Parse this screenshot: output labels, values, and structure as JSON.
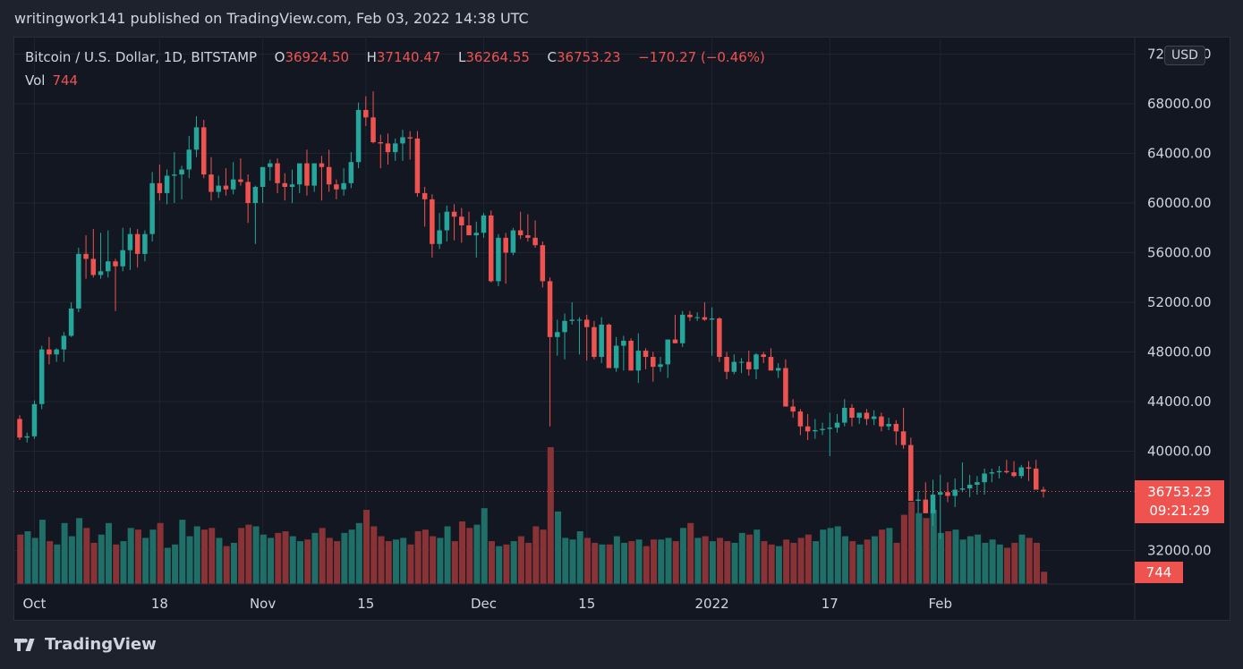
{
  "header": {
    "publish_line": "writingwork141 published on TradingView.com, Feb 03, 2022 14:38 UTC"
  },
  "legend": {
    "symbol": "Bitcoin / U.S. Dollar, 1D, BITSTAMP",
    "open_label": "O",
    "open": "36924.50",
    "high_label": "H",
    "high": "37140.47",
    "low_label": "L",
    "low": "36264.55",
    "close_label": "C",
    "close": "36753.23",
    "change": "−170.27 (−0.46%)",
    "vol_label": "Vol",
    "vol_value": "744"
  },
  "currency": "USD",
  "price_tag": {
    "price": "36753.23",
    "countdown": "09:21:29"
  },
  "vol_tag": "744",
  "footer": {
    "brand": "TradingView"
  },
  "colors": {
    "up": "#26a69a",
    "down": "#ef5350",
    "vol_up": "#1f6e67",
    "vol_down": "#8a3337",
    "background": "#131722",
    "grid": "#1f2430",
    "text": "#d1d4dc"
  },
  "chart_data": {
    "type": "candlestick",
    "title": "Bitcoin / U.S. Dollar, 1D, BITSTAMP",
    "y_ticks": [
      "72000.00",
      "68000.00",
      "64000.00",
      "60000.00",
      "56000.00",
      "52000.00",
      "48000.00",
      "44000.00",
      "40000.00",
      "32000.00"
    ],
    "y_tick_values": [
      72000,
      68000,
      64000,
      60000,
      56000,
      52000,
      48000,
      44000,
      40000,
      32000
    ],
    "x_ticks": [
      {
        "label": "Oct",
        "index": 2
      },
      {
        "label": "18",
        "index": 19
      },
      {
        "label": "Nov",
        "index": 33
      },
      {
        "label": "15",
        "index": 47
      },
      {
        "label": "Dec",
        "index": 63
      },
      {
        "label": "15",
        "index": 77
      },
      {
        "label": "2022",
        "index": 94
      },
      {
        "label": "17",
        "index": 110
      },
      {
        "label": "Feb",
        "index": 125
      }
    ],
    "ylim": [
      31000,
      74000
    ],
    "current_price": 36753.23,
    "candles_ohlc": [
      [
        42600,
        42900,
        40900,
        41100
      ],
      [
        41100,
        41500,
        40700,
        41200
      ],
      [
        41200,
        44100,
        41000,
        43800
      ],
      [
        43800,
        48500,
        43400,
        48200
      ],
      [
        48200,
        49200,
        47000,
        47800
      ],
      [
        47800,
        48300,
        47200,
        48200
      ],
      [
        48200,
        49600,
        47200,
        49300
      ],
      [
        49300,
        52000,
        49200,
        51500
      ],
      [
        51500,
        56400,
        51200,
        55900
      ],
      [
        55900,
        57400,
        53900,
        55500
      ],
      [
        55500,
        57900,
        54000,
        54200
      ],
      [
        54200,
        57600,
        53900,
        54500
      ],
      [
        54500,
        57800,
        54000,
        55300
      ],
      [
        55300,
        55500,
        51300,
        54900
      ],
      [
        54900,
        58000,
        54500,
        56200
      ],
      [
        56200,
        58000,
        54600,
        57500
      ],
      [
        57500,
        57900,
        54800,
        55900
      ],
      [
        55900,
        57800,
        55300,
        57500
      ],
      [
        57500,
        62500,
        56900,
        61600
      ],
      [
        61600,
        63100,
        60200,
        60800
      ],
      [
        60800,
        62700,
        59900,
        62200
      ],
      [
        62200,
        64100,
        60000,
        62300
      ],
      [
        62300,
        63000,
        60300,
        62700
      ],
      [
        62700,
        65400,
        62000,
        64300
      ],
      [
        64300,
        67000,
        63700,
        66100
      ],
      [
        66100,
        66700,
        62000,
        62300
      ],
      [
        62300,
        63700,
        60200,
        60900
      ],
      [
        60900,
        62200,
        60400,
        61400
      ],
      [
        61400,
        62800,
        60600,
        61100
      ],
      [
        61100,
        63300,
        60700,
        61900
      ],
      [
        61900,
        63600,
        61400,
        61700
      ],
      [
        61700,
        62300,
        58400,
        60000
      ],
      [
        60000,
        61400,
        56700,
        61300
      ],
      [
        61300,
        62300,
        60000,
        62900
      ],
      [
        62900,
        63500,
        61800,
        63200
      ],
      [
        63200,
        63600,
        60800,
        61600
      ],
      [
        61600,
        62400,
        60200,
        61300
      ],
      [
        61300,
        62700,
        60000,
        61500
      ],
      [
        61500,
        63000,
        60800,
        63200
      ],
      [
        63200,
        64300,
        60600,
        61400
      ],
      [
        61400,
        62900,
        60900,
        63200
      ],
      [
        63200,
        63800,
        60200,
        62900
      ],
      [
        62900,
        64300,
        60900,
        61500
      ],
      [
        61500,
        61900,
        60300,
        61100
      ],
      [
        61100,
        62800,
        60600,
        61600
      ],
      [
        61600,
        64100,
        61200,
        63300
      ],
      [
        63300,
        68100,
        62800,
        67500
      ],
      [
        67500,
        68600,
        66200,
        66900
      ],
      [
        66900,
        69000,
        64800,
        64900
      ],
      [
        64900,
        65500,
        62800,
        64800
      ],
      [
        64800,
        65600,
        63100,
        64100
      ],
      [
        64100,
        65200,
        63400,
        64800
      ],
      [
        64800,
        65900,
        63400,
        65300
      ],
      [
        65300,
        65800,
        63500,
        65200
      ],
      [
        65200,
        65800,
        60500,
        60800
      ],
      [
        60800,
        61300,
        58100,
        60300
      ],
      [
        60300,
        60700,
        55600,
        56700
      ],
      [
        56700,
        59200,
        56300,
        57800
      ],
      [
        57800,
        59800,
        56900,
        59300
      ],
      [
        59300,
        59900,
        57000,
        58900
      ],
      [
        58900,
        59600,
        56800,
        58200
      ],
      [
        58200,
        59300,
        57900,
        57400
      ],
      [
        57400,
        58500,
        55600,
        57600
      ],
      [
        57600,
        59200,
        57200,
        59000
      ],
      [
        59000,
        59400,
        53600,
        53700
      ],
      [
        53700,
        57500,
        53300,
        57200
      ],
      [
        57200,
        57600,
        53500,
        56000
      ],
      [
        56000,
        58000,
        55800,
        57800
      ],
      [
        57800,
        59300,
        57100,
        57400
      ],
      [
        57400,
        59100,
        56900,
        57200
      ],
      [
        57200,
        58600,
        56400,
        56600
      ],
      [
        56600,
        56900,
        53200,
        53700
      ],
      [
        53700,
        54000,
        42000,
        49200
      ],
      [
        49200,
        50600,
        47700,
        49600
      ],
      [
        49600,
        51100,
        47400,
        50500
      ],
      [
        50500,
        52000,
        50200,
        50600
      ],
      [
        50600,
        50800,
        47800,
        50600
      ],
      [
        50600,
        51000,
        47300,
        50000
      ],
      [
        50000,
        50500,
        47400,
        47600
      ],
      [
        47600,
        50800,
        47100,
        50200
      ],
      [
        50200,
        50300,
        46900,
        46700
      ],
      [
        46700,
        49200,
        46400,
        48500
      ],
      [
        48500,
        49300,
        46500,
        48900
      ],
      [
        48900,
        49100,
        46600,
        46500
      ],
      [
        46500,
        49500,
        45500,
        48100
      ],
      [
        48100,
        48300,
        46600,
        47600
      ],
      [
        47600,
        48000,
        45600,
        46800
      ],
      [
        46800,
        47600,
        46400,
        47000
      ],
      [
        47000,
        48200,
        45900,
        49000
      ],
      [
        49000,
        51000,
        48700,
        48700
      ],
      [
        48700,
        51300,
        48400,
        51000
      ],
      [
        51000,
        51300,
        50500,
        50800
      ],
      [
        50800,
        51200,
        50500,
        50800
      ],
      [
        50800,
        52000,
        50500,
        50600
      ],
      [
        50600,
        51600,
        47700,
        50700
      ],
      [
        50700,
        50800,
        47200,
        47600
      ],
      [
        47600,
        48000,
        45800,
        46400
      ],
      [
        46400,
        47800,
        46200,
        47200
      ],
      [
        47200,
        47500,
        46300,
        47200
      ],
      [
        47200,
        48100,
        46100,
        46600
      ],
      [
        46600,
        47900,
        45800,
        47800
      ],
      [
        47800,
        48000,
        47100,
        47600
      ],
      [
        47600,
        48300,
        46700,
        46500
      ],
      [
        46500,
        47100,
        45900,
        46700
      ],
      [
        46700,
        47400,
        45600,
        43600
      ],
      [
        43600,
        44200,
        42700,
        43200
      ],
      [
        43200,
        43400,
        41300,
        42000
      ],
      [
        42000,
        43000,
        40900,
        41600
      ],
      [
        41600,
        42600,
        41000,
        41700
      ],
      [
        41700,
        42300,
        41300,
        41800
      ],
      [
        41800,
        43100,
        39600,
        41900
      ],
      [
        41900,
        43000,
        41500,
        42300
      ],
      [
        42300,
        44200,
        42000,
        43500
      ],
      [
        43500,
        43800,
        42000,
        42700
      ],
      [
        42700,
        43000,
        42200,
        43100
      ],
      [
        43100,
        43400,
        42100,
        42600
      ],
      [
        42600,
        43300,
        42100,
        42800
      ],
      [
        42800,
        43100,
        41600,
        42000
      ],
      [
        42000,
        42700,
        41700,
        42200
      ],
      [
        42200,
        42500,
        40500,
        41600
      ],
      [
        41600,
        43500,
        40200,
        40500
      ],
      [
        40500,
        41100,
        38300,
        36000
      ],
      [
        36000,
        36800,
        35000,
        36100
      ],
      [
        36100,
        37500,
        35400,
        35000
      ],
      [
        35000,
        37700,
        34000,
        36500
      ],
      [
        36500,
        38100,
        32900,
        36700
      ],
      [
        36700,
        37500,
        35900,
        36400
      ],
      [
        36400,
        37800,
        35500,
        36900
      ],
      [
        36900,
        39100,
        36700,
        37000
      ],
      [
        37000,
        38100,
        36300,
        37300
      ],
      [
        37300,
        38000,
        36500,
        37500
      ],
      [
        37500,
        38600,
        36500,
        38200
      ],
      [
        38200,
        38600,
        37500,
        38300
      ],
      [
        38300,
        38800,
        37800,
        38400
      ],
      [
        38400,
        39300,
        38200,
        38300
      ],
      [
        38300,
        39200,
        37900,
        38000
      ],
      [
        38000,
        38900,
        37800,
        38700
      ],
      [
        38700,
        39200,
        37600,
        38600
      ],
      [
        38600,
        39300,
        38300,
        36900
      ],
      [
        36900,
        37140,
        36264,
        36753
      ]
    ],
    "volume": [
      3000,
      3200,
      2800,
      3900,
      2600,
      2400,
      3700,
      2900,
      4000,
      3400,
      2500,
      3000,
      3700,
      2400,
      2600,
      3400,
      3300,
      2800,
      3300,
      3700,
      2200,
      2400,
      3900,
      2900,
      3500,
      3300,
      3400,
      2800,
      2300,
      2500,
      3400,
      3600,
      3500,
      3000,
      2800,
      3100,
      3200,
      2900,
      2600,
      2700,
      3100,
      3400,
      2800,
      2600,
      3100,
      3300,
      3700,
      4500,
      3500,
      2900,
      2600,
      2700,
      2800,
      2400,
      3200,
      3300,
      2900,
      2800,
      3500,
      2600,
      3800,
      3400,
      3600,
      4600,
      2600,
      2300,
      2400,
      2600,
      2900,
      2500,
      3500,
      3300,
      8300,
      4400,
      2800,
      2700,
      3200,
      2800,
      2500,
      2400,
      2400,
      2900,
      2500,
      2600,
      2700,
      2300,
      2700,
      2700,
      2800,
      2600,
      3400,
      3700,
      2800,
      2900,
      2600,
      2800,
      2600,
      2500,
      3100,
      3000,
      3300,
      2600,
      2400,
      2300,
      2700,
      2500,
      2800,
      3000,
      2600,
      3300,
      3400,
      3500,
      2900,
      2600,
      2400,
      2700,
      2900,
      3300,
      3400,
      2500,
      4200,
      5000,
      4300,
      4000,
      4500,
      3100,
      3200,
      3300,
      2700,
      2900,
      3000,
      2500,
      2700,
      2400,
      2200,
      2500,
      3000,
      2800,
      2500,
      744
    ]
  }
}
